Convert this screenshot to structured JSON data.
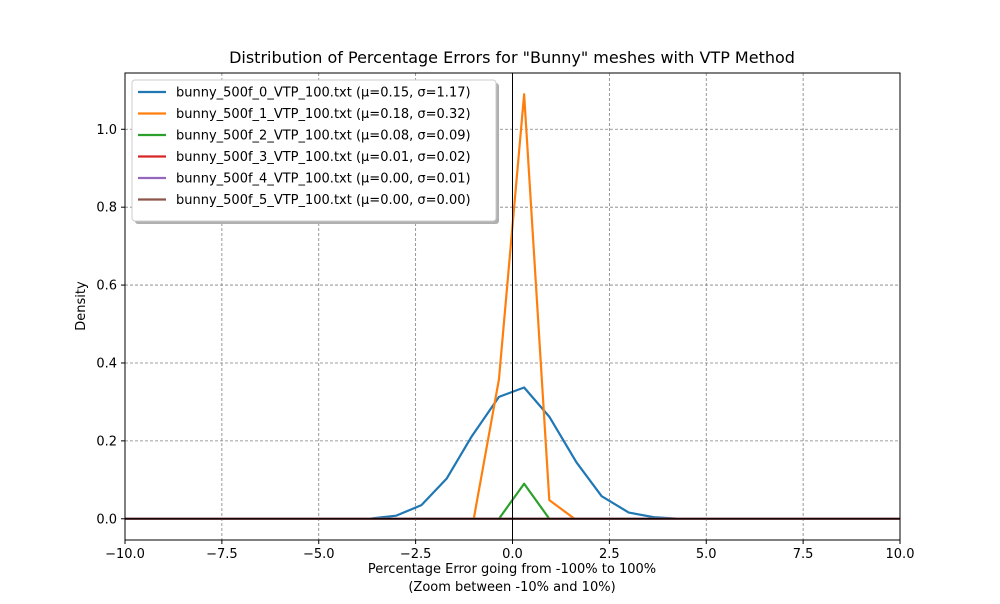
{
  "chart_data": {
    "type": "line",
    "title": "Distribution of Percentage Errors for \"Bunny\" meshes with VTP Method",
    "xlabel_line1": "Percentage Error going from -100% to 100%",
    "xlabel_line2": "(Zoom between -10% and 10%)",
    "ylabel": "Density",
    "xlim": [
      -10.0,
      10.0
    ],
    "ylim": [
      -0.0545,
      1.1445
    ],
    "x_ticks": [
      -10.0,
      -7.5,
      -5.0,
      -2.5,
      0.0,
      2.5,
      5.0,
      7.5,
      10.0
    ],
    "x_tick_labels": [
      "−10.0",
      "−7.5",
      "−5.0",
      "−2.5",
      "0.0",
      "2.5",
      "5.0",
      "7.5",
      "10.0"
    ],
    "y_ticks": [
      0.0,
      0.2,
      0.4,
      0.6,
      0.8,
      1.0
    ],
    "y_tick_labels": [
      "0.0",
      "0.2",
      "0.4",
      "0.6",
      "0.8",
      "1.0"
    ],
    "grid": true,
    "legend_position": "upper-left",
    "reference_lines": {
      "vertical_x": 0,
      "horizontal_y": 0
    },
    "series": [
      {
        "name": "bunny_500f_0_VTP_100.txt (μ=0.15, σ=1.17)",
        "color": "#1f77b4",
        "x": [
          -10.0,
          -4.5,
          -3.7,
          -3.0,
          -2.35,
          -1.7,
          -1.05,
          -0.35,
          0.3,
          0.95,
          1.65,
          2.3,
          3.0,
          3.65,
          4.3,
          10.0
        ],
        "y": [
          0.0,
          0.0,
          0.0,
          0.008,
          0.035,
          0.103,
          0.212,
          0.313,
          0.337,
          0.262,
          0.145,
          0.058,
          0.016,
          0.004,
          0.0,
          0.0
        ]
      },
      {
        "name": "bunny_500f_1_VTP_100.txt (μ=0.18, σ=0.32)",
        "color": "#ff7f0e",
        "x": [
          -10.0,
          -1.0,
          -0.35,
          0.3,
          0.95,
          1.6,
          10.0
        ],
        "y": [
          0.0,
          0.0,
          0.358,
          1.09,
          0.048,
          0.0,
          0.0
        ]
      },
      {
        "name": "bunny_500f_2_VTP_100.txt (μ=0.08, σ=0.09)",
        "color": "#2ca02c",
        "x": [
          -10.0,
          -0.35,
          0.3,
          0.95,
          10.0
        ],
        "y": [
          0.0,
          0.0,
          0.09,
          0.0,
          0.0
        ]
      },
      {
        "name": "bunny_500f_3_VTP_100.txt (μ=0.01, σ=0.02)",
        "color": "#d62728",
        "x": [
          -10.0,
          10.0
        ],
        "y": [
          0.0,
          0.0
        ]
      },
      {
        "name": "bunny_500f_4_VTP_100.txt (μ=0.00, σ=0.01)",
        "color": "#9467bd",
        "x": [
          -10.0,
          10.0
        ],
        "y": [
          0.0,
          0.0
        ]
      },
      {
        "name": "bunny_500f_5_VTP_100.txt (μ=0.00, σ=0.00)",
        "color": "#8c564b",
        "x": [
          -10.0,
          10.0
        ],
        "y": [
          0.0,
          0.0
        ]
      }
    ]
  }
}
